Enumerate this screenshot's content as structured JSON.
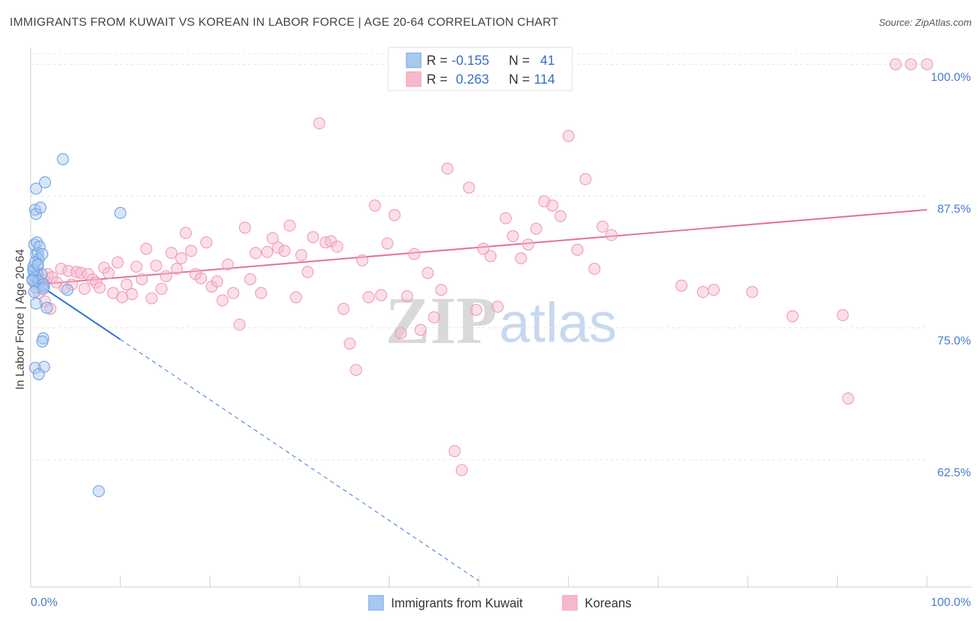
{
  "header": {
    "title": "IMMIGRANTS FROM KUWAIT VS KOREAN IN LABOR FORCE | AGE 20-64 CORRELATION CHART",
    "source": "Source: ZipAtlas.com"
  },
  "watermark": {
    "zip": "ZIP",
    "atlas": "atlas"
  },
  "legend": {
    "rows": [
      {
        "r_label": "R =",
        "r_value": "-0.155",
        "n_label": "N =",
        "n_value": "41",
        "color": "#a9c8f0"
      },
      {
        "r_label": "R =",
        "r_value": "0.263",
        "n_label": "N =",
        "n_value": "114",
        "color": "#f6b9cc"
      }
    ]
  },
  "bottom_legend": [
    {
      "label": "Immigrants from Kuwait",
      "color": "#a9c8f0"
    },
    {
      "label": "Koreans",
      "color": "#f6b9cc"
    }
  ],
  "chart_data": {
    "type": "scatter",
    "title": "IMMIGRANTS FROM KUWAIT VS KOREAN IN LABOR FORCE | AGE 20-64 CORRELATION CHART",
    "ylabel": "In Labor Force | Age 20-64",
    "xlabel": "",
    "xlim": [
      0,
      100
    ],
    "ylim": [
      50.4,
      101.6
    ],
    "y_ticks": [
      62.5,
      75.0,
      87.5,
      100.0
    ],
    "y_tick_labels": [
      "62.5%",
      "75.0%",
      "87.5%",
      "100.0%"
    ],
    "x_tick_labels": [
      "0.0%",
      "100.0%"
    ],
    "grid": true,
    "legend_position": "top-center",
    "series": [
      {
        "name": "Immigrants from Kuwait",
        "color": "#6fa3e6",
        "fill": "#a9c8f0",
        "line_color": "#2e74d6",
        "trend": {
          "x": [
            0,
            10
          ],
          "y": [
            79.6,
            73.9
          ]
        },
        "trend_ext": {
          "x": [
            10,
            50
          ],
          "y": [
            73.9,
            51.0
          ]
        },
        "x": [
          0.4,
          0.7,
          1.2,
          0.5,
          0.3,
          0.8,
          0.2,
          0.9,
          1.4,
          0.6,
          0.4,
          1.5,
          0.3,
          0.2,
          0.6,
          0.8,
          0.9,
          0.4,
          0.7,
          1.0,
          1.3,
          0.5,
          0.6,
          1.1,
          0.3,
          0.5,
          0.8,
          0.6,
          1.6,
          1.4,
          1.8,
          0.6,
          1.4,
          1.3,
          0.5,
          3.6,
          10.0,
          7.6,
          4.1,
          1.5,
          0.9
        ],
        "y": [
          79.8,
          80.2,
          80.1,
          79.9,
          80.5,
          80.9,
          79.6,
          79.4,
          79.1,
          78.8,
          78.4,
          78.9,
          80.4,
          79.5,
          82.0,
          82.1,
          81.5,
          82.9,
          83.1,
          82.7,
          82.0,
          86.2,
          85.8,
          86.4,
          80.8,
          81.2,
          81.0,
          88.2,
          88.8,
          78.7,
          76.9,
          77.3,
          74.0,
          73.7,
          71.2,
          91.0,
          85.9,
          59.5,
          78.6,
          71.3,
          70.6
        ]
      },
      {
        "name": "Koreans",
        "color": "#f19bb6",
        "fill": "#f6b9cc",
        "line_color": "#e4739b",
        "trend": {
          "x": [
            0.5,
            100
          ],
          "y": [
            79.1,
            86.2
          ]
        },
        "x": [
          0.5,
          0.8,
          1.2,
          1.5,
          1.9,
          2.4,
          2.9,
          3.4,
          3.8,
          4.2,
          4.6,
          5.1,
          5.6,
          6.0,
          6.4,
          6.9,
          7.3,
          7.7,
          8.2,
          8.7,
          9.2,
          9.7,
          10.2,
          10.7,
          11.3,
          11.8,
          12.4,
          12.9,
          13.5,
          14.0,
          14.6,
          15.1,
          15.7,
          16.3,
          16.8,
          17.3,
          17.9,
          18.4,
          19.0,
          19.6,
          20.2,
          20.8,
          21.4,
          22.0,
          22.6,
          23.3,
          23.9,
          24.5,
          25.1,
          25.7,
          26.4,
          27.0,
          27.6,
          28.3,
          28.9,
          29.6,
          30.2,
          30.9,
          31.5,
          32.2,
          32.9,
          33.5,
          34.2,
          34.9,
          35.6,
          36.3,
          37.0,
          37.7,
          38.4,
          39.1,
          39.8,
          40.6,
          41.3,
          42.0,
          42.8,
          43.5,
          44.3,
          45.0,
          45.8,
          46.5,
          47.3,
          48.1,
          48.9,
          49.7,
          50.5,
          51.3,
          52.1,
          53.0,
          53.8,
          54.7,
          55.5,
          56.4,
          57.3,
          58.2,
          59.1,
          60.0,
          61.0,
          61.9,
          62.9,
          63.8,
          64.8,
          72.6,
          75.0,
          76.2,
          80.5,
          85.0,
          90.6,
          91.2,
          96.5,
          98.2,
          100.0,
          0.9,
          1.6,
          2.2
        ],
        "y": [
          79.2,
          80.0,
          78.9,
          79.5,
          80.1,
          79.8,
          79.3,
          80.6,
          78.8,
          80.4,
          79.1,
          80.3,
          80.2,
          78.7,
          80.1,
          79.6,
          79.3,
          78.8,
          80.7,
          80.2,
          78.3,
          81.2,
          77.9,
          79.1,
          78.2,
          80.8,
          79.6,
          82.5,
          77.8,
          80.9,
          78.7,
          79.9,
          82.1,
          80.6,
          81.6,
          84.0,
          82.3,
          80.1,
          79.7,
          83.1,
          78.9,
          79.4,
          77.6,
          81.0,
          78.3,
          75.3,
          84.5,
          79.6,
          82.1,
          78.3,
          82.2,
          83.5,
          82.6,
          82.3,
          84.7,
          77.9,
          81.9,
          80.3,
          83.6,
          94.4,
          83.1,
          83.2,
          82.7,
          76.8,
          73.5,
          71.0,
          81.4,
          77.9,
          86.6,
          78.1,
          83.0,
          85.7,
          74.5,
          78.0,
          82.0,
          74.8,
          80.2,
          76.0,
          78.6,
          90.1,
          63.3,
          61.5,
          88.3,
          76.7,
          82.5,
          81.8,
          77.0,
          85.4,
          83.7,
          81.6,
          82.9,
          84.4,
          87.0,
          86.6,
          85.6,
          93.2,
          82.4,
          89.1,
          80.6,
          84.6,
          83.8,
          79.0,
          78.4,
          78.6,
          78.4,
          76.1,
          76.2,
          68.3,
          100.0,
          100.0,
          100.0,
          78.3,
          77.5,
          76.8
        ]
      }
    ]
  }
}
